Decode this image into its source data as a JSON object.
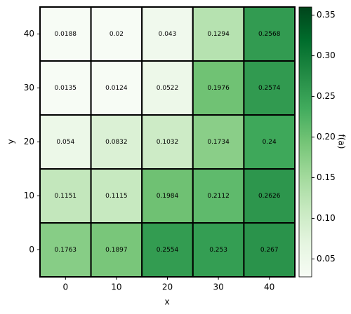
{
  "chart_data": {
    "type": "heatmap",
    "x": [
      0,
      10,
      20,
      30,
      40
    ],
    "y": [
      0,
      10,
      20,
      30,
      40
    ],
    "z": [
      [
        0.1763,
        0.1897,
        0.2554,
        0.253,
        0.267
      ],
      [
        0.1151,
        0.1115,
        0.1984,
        0.2112,
        0.2626
      ],
      [
        0.054,
        0.0832,
        0.1032,
        0.1734,
        0.24
      ],
      [
        0.0135,
        0.0124,
        0.0522,
        0.1976,
        0.2574
      ],
      [
        0.0188,
        0.02,
        0.043,
        0.1294,
        0.2568
      ]
    ],
    "xlabel": "x",
    "ylabel": "y",
    "colorbar_label": "f(a)",
    "clim": [
      0.028,
      0.36
    ],
    "cticks": [
      0.05,
      {
        "value": 0.1,
        "label": "0.10"
      },
      0.15,
      {
        "value": 0.2,
        "label": "0.20"
      },
      0.25,
      {
        "value": 0.3,
        "label": "0.30"
      },
      0.35
    ],
    "colormap": [
      "#f7fcf5",
      "#e5f5e0",
      "#c7e9c0",
      "#a1d99b",
      "#74c476",
      "#41ab5d",
      "#238b45",
      "#006d2c",
      "#00441b"
    ],
    "cell_border_color": "#000000"
  }
}
